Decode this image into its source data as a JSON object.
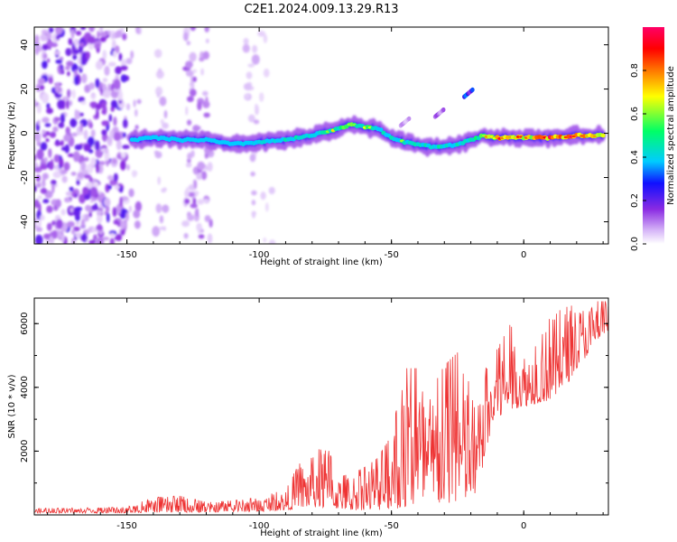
{
  "figure_title": "C2E1.2024.009.13.29.R13",
  "colors": {
    "snr_line": "#ee3333",
    "colormap": [
      "#ffffff",
      "#d8b8f8",
      "#8a2be2",
      "#1010ff",
      "#00ccff",
      "#00ff66",
      "#ffff00",
      "#ff7700",
      "#ff0000",
      "#ff0066"
    ]
  },
  "chart_data": [
    {
      "type": "heatmap",
      "title": "",
      "xlabel": "Height of straight line (km)",
      "ylabel": "Frequency (Hz)",
      "xlim": [
        -185,
        32
      ],
      "ylim": [
        -50,
        48
      ],
      "xticks": [
        -150,
        -100,
        -50,
        0
      ],
      "xtick_labels": [
        "-150",
        "-100",
        "-50",
        "0"
      ],
      "yticks": [
        -40,
        -20,
        0,
        20,
        40
      ],
      "ytick_labels": [
        "-40",
        "-20",
        "0",
        "20",
        "40"
      ],
      "colorbar": {
        "label": "Normalized spectral amplitude",
        "range": [
          0,
          1
        ],
        "ticks": [
          0.0,
          0.2,
          0.4,
          0.6,
          0.8
        ],
        "tick_labels": [
          "0.0",
          "0.2",
          "0.4",
          "0.6",
          "0.8"
        ]
      },
      "ridge": {
        "x": [
          -148,
          -140,
          -130,
          -120,
          -110,
          -100,
          -90,
          -80,
          -70,
          -65,
          -60,
          -55,
          -50,
          -45,
          -40,
          -35,
          -30,
          -25,
          -20,
          -15,
          -10,
          -5,
          0,
          10,
          20,
          30
        ],
        "freq": [
          -3,
          -2,
          -3,
          -3,
          -5,
          -4,
          -3,
          -1,
          2,
          4,
          3,
          2,
          -2,
          -4,
          -5,
          -6,
          -6,
          -5,
          -3,
          -1,
          -2,
          -2,
          -2,
          -2,
          -1,
          -1
        ],
        "amplitude": [
          0.35,
          0.4,
          0.35,
          0.4,
          0.45,
          0.45,
          0.5,
          0.55,
          0.65,
          0.7,
          0.6,
          0.55,
          0.5,
          0.55,
          0.5,
          0.55,
          0.5,
          0.5,
          0.55,
          0.7,
          0.85,
          0.85,
          0.85,
          0.95,
          0.95,
          0.9
        ]
      },
      "secondary_features": [
        {
          "x": -21,
          "freq": 18,
          "amplitude": 0.35
        },
        {
          "x": -32,
          "freq": 9,
          "amplitude": 0.15
        },
        {
          "x": -45,
          "freq": 5,
          "amplitude": 0.1
        }
      ]
    },
    {
      "type": "line",
      "title": "",
      "xlabel": "Height of straight line (km)",
      "ylabel": "SNR (10 * v/v)",
      "xlim": [
        -185,
        32
      ],
      "ylim": [
        0,
        6800
      ],
      "xticks": [
        -150,
        -100,
        -50,
        0
      ],
      "xtick_labels": [
        "-150",
        "-100",
        "-50",
        "0"
      ],
      "yticks": [
        2000,
        4000,
        6000
      ],
      "ytick_labels": [
        "2000",
        "4000",
        "6000"
      ],
      "envelope": {
        "x": [
          -185,
          -170,
          -160,
          -150,
          -140,
          -130,
          -120,
          -110,
          -100,
          -90,
          -85,
          -80,
          -75,
          -70,
          -65,
          -60,
          -55,
          -50,
          -45,
          -40,
          -35,
          -30,
          -25,
          -20,
          -17,
          -15,
          -12,
          -10,
          -5,
          0,
          5,
          10,
          15,
          20,
          25,
          30,
          32
        ],
        "low": [
          60,
          60,
          60,
          60,
          80,
          80,
          80,
          100,
          100,
          150,
          200,
          250,
          200,
          200,
          150,
          150,
          150,
          200,
          200,
          300,
          300,
          350,
          400,
          500,
          700,
          1800,
          2600,
          3000,
          3300,
          3400,
          3500,
          3600,
          3900,
          4600,
          5100,
          5600,
          5800
        ],
        "high": [
          200,
          220,
          220,
          250,
          550,
          600,
          400,
          450,
          550,
          800,
          1600,
          1800,
          2300,
          1200,
          1300,
          1500,
          1800,
          2500,
          4600,
          4600,
          3900,
          4700,
          5100,
          4000,
          3400,
          4500,
          5000,
          5200,
          6000,
          5200,
          5300,
          6200,
          6500,
          6600,
          6700,
          6700,
          6700
        ]
      }
    }
  ]
}
